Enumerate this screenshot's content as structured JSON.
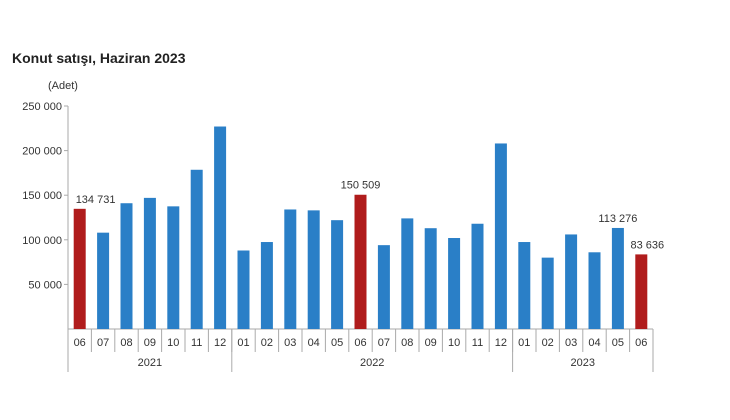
{
  "chart_data": {
    "type": "bar",
    "title": "Konut satışı, Haziran 2023",
    "ylabel": "(Adet)",
    "ylim": [
      0,
      250000
    ],
    "yticks": [
      50000,
      100000,
      150000,
      200000,
      250000
    ],
    "ytick_labels": [
      "50 000",
      "100 000",
      "150 000",
      "200 000",
      "250 000"
    ],
    "grid": false,
    "categories": [
      "06",
      "07",
      "08",
      "09",
      "10",
      "11",
      "12",
      "01",
      "02",
      "03",
      "04",
      "05",
      "06",
      "07",
      "08",
      "09",
      "10",
      "11",
      "12",
      "01",
      "02",
      "03",
      "04",
      "05",
      "06"
    ],
    "years": [
      {
        "label": "2021",
        "count": 7
      },
      {
        "label": "2022",
        "count": 12
      },
      {
        "label": "2023",
        "count": 6
      }
    ],
    "values": [
      134731,
      108000,
      141000,
      147000,
      137500,
      178500,
      227000,
      88000,
      97500,
      134000,
      133000,
      122000,
      150509,
      94000,
      124000,
      113000,
      102000,
      118000,
      208000,
      97500,
      80000,
      106000,
      86000,
      113276,
      83636
    ],
    "highlight_indices": [
      0,
      12,
      24
    ],
    "data_labels": {
      "0": "134 731",
      "12": "150 509",
      "23": "113 276",
      "24": "83 636"
    },
    "colors": {
      "bar": "#2a7fc7",
      "highlight": "#b01c1c"
    }
  }
}
